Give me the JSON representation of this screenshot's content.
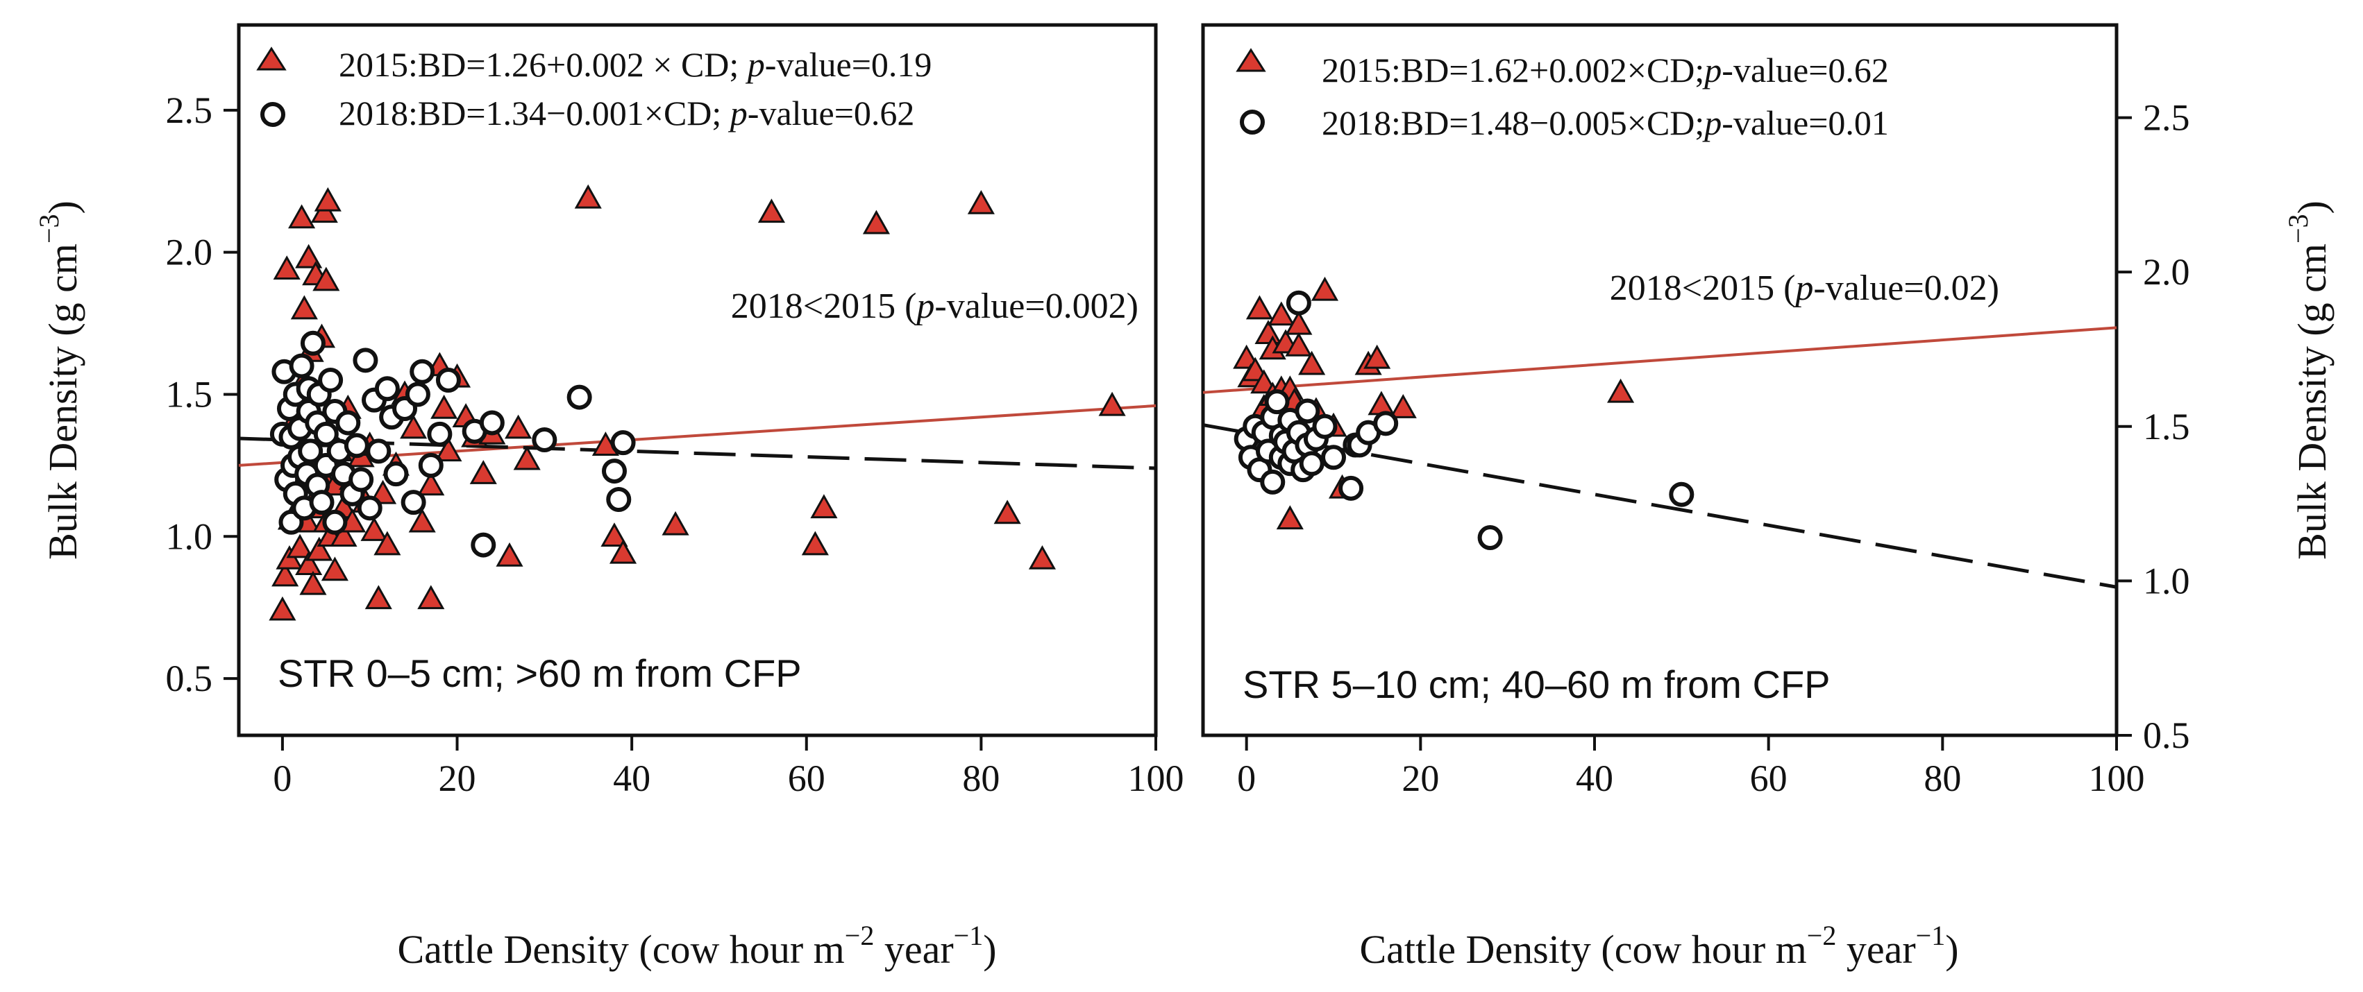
{
  "chart_data": [
    {
      "type": "scatter",
      "panel": "left",
      "title": "STR 0–5 cm; >60 m from CFP",
      "xlabel": "Cattle Density (cow hour m−2 year−1)",
      "ylabel": "Bulk Density (g cm−3)",
      "ylabel_side": "left",
      "xlim": [
        -5,
        100
      ],
      "ylim": [
        0.3,
        2.8
      ],
      "xticks": [
        0,
        20,
        40,
        60,
        80,
        100
      ],
      "yticks": [
        0.5,
        1.0,
        1.5,
        2.0,
        2.5
      ],
      "legend_position": "top-left",
      "annotation": {
        "prefix": "2018<2015 (",
        "italic": "p",
        "suffix": "-value=0.002)"
      },
      "series": [
        {
          "name": "2015",
          "legend": {
            "prefix": "2015:BD=1.26+0.002 × CD; ",
            "italic": "p",
            "suffix": "-value=0.19"
          },
          "marker": "triangle",
          "color": "#d93a30",
          "fit": {
            "intercept": 1.26,
            "slope": 0.002,
            "style": "solid",
            "color": "#c0493b"
          },
          "x": [
            0,
            0.3,
            0.5,
            0.8,
            1,
            1,
            1.2,
            1.5,
            1.8,
            2,
            2,
            2.2,
            2.5,
            2.5,
            2.8,
            3,
            3,
            3,
            3.2,
            3.5,
            3.5,
            3.8,
            4,
            4,
            4.2,
            4.5,
            4.5,
            4.8,
            5,
            5,
            5.2,
            5.5,
            5.5,
            6,
            6,
            6.5,
            7,
            7,
            7.5,
            8,
            8,
            9,
            9.5,
            10,
            10.5,
            11,
            11.5,
            12,
            13,
            14,
            15,
            16,
            17,
            17,
            18,
            18.5,
            19,
            20,
            21,
            22,
            23,
            24,
            26,
            27,
            28,
            35,
            37,
            38,
            39,
            45,
            56,
            61,
            62,
            68,
            80,
            83,
            87,
            95
          ],
          "y": [
            0.74,
            0.86,
            1.94,
            0.92,
            1.06,
            1.25,
            1.4,
            1.2,
            1.1,
            1.3,
            0.96,
            2.12,
            1.8,
            1.55,
            1.05,
            1.98,
            1.28,
            0.9,
            1.65,
            1.1,
            0.83,
            1.92,
            1.4,
            1.15,
            0.95,
            1.22,
            1.7,
            2.14,
            1.05,
            1.9,
            2.18,
            1.35,
            1.0,
            1.18,
            0.88,
            1.3,
            1.1,
            1.0,
            1.45,
            1.2,
            1.05,
            1.28,
            1.12,
            1.32,
            1.02,
            0.78,
            1.15,
            0.97,
            1.25,
            1.5,
            1.38,
            1.05,
            1.18,
            0.78,
            1.6,
            1.45,
            1.3,
            1.56,
            1.42,
            1.35,
            1.22,
            1.36,
            0.93,
            1.38,
            1.27,
            2.19,
            1.32,
            1.0,
            0.94,
            1.04,
            2.14,
            0.97,
            1.1,
            2.1,
            2.17,
            1.08,
            0.92,
            1.46
          ]
        },
        {
          "name": "2018",
          "legend": {
            "prefix": "2018:BD=1.34−0.001×CD; ",
            "italic": "p",
            "suffix": "-value=0.62"
          },
          "marker": "circle",
          "color": "#000000",
          "fit": {
            "intercept": 1.34,
            "slope": -0.001,
            "style": "dashed",
            "color": "#111111"
          },
          "x": [
            0,
            0.2,
            0.5,
            0.8,
            1,
            1,
            1.2,
            1.5,
            1.5,
            2,
            2,
            2.2,
            2.5,
            2.8,
            3,
            3,
            3.2,
            3.5,
            4,
            4,
            4.2,
            4.5,
            5,
            5,
            5.5,
            6,
            6,
            6.5,
            7,
            7.5,
            8,
            8.5,
            9,
            9.5,
            10,
            10.5,
            11,
            12,
            12.5,
            13,
            14,
            15,
            15.5,
            16,
            17,
            18,
            19,
            22,
            23,
            24,
            30,
            34,
            38,
            38.5,
            39
          ],
          "y": [
            1.36,
            1.58,
            1.2,
            1.45,
            1.35,
            1.05,
            1.25,
            1.5,
            1.15,
            1.38,
            1.28,
            1.6,
            1.1,
            1.22,
            1.44,
            1.52,
            1.3,
            1.68,
            1.18,
            1.4,
            1.5,
            1.12,
            1.36,
            1.25,
            1.55,
            1.05,
            1.44,
            1.3,
            1.22,
            1.4,
            1.15,
            1.32,
            1.2,
            1.62,
            1.1,
            1.48,
            1.3,
            1.52,
            1.42,
            1.22,
            1.45,
            1.12,
            1.5,
            1.58,
            1.25,
            1.36,
            1.55,
            1.37,
            0.97,
            1.4,
            1.34,
            1.49,
            1.23,
            1.13,
            1.33
          ]
        }
      ]
    },
    {
      "type": "scatter",
      "panel": "right",
      "title": "STR 5–10 cm; 40–60 m from CFP",
      "xlabel": "Cattle Density (cow hour m−2 year−1)",
      "ylabel": "Bulk Density (g cm−3)",
      "ylabel_side": "right",
      "xlim": [
        -5,
        100
      ],
      "ylim": [
        0.5,
        2.8
      ],
      "xticks": [
        0,
        20,
        40,
        60,
        80,
        100
      ],
      "yticks": [
        0.5,
        1.0,
        1.5,
        2.0,
        2.5
      ],
      "legend_position": "top-left",
      "annotation": {
        "prefix": "2018<2015 (",
        "italic": "p",
        "suffix": "-value=0.02)"
      },
      "series": [
        {
          "name": "2015",
          "legend": {
            "prefix": "2015:BD=1.62+0.002×CD;",
            "italic": "p",
            "suffix": "-value=0.62"
          },
          "marker": "triangle",
          "color": "#d93a30",
          "fit": {
            "intercept": 1.62,
            "slope": 0.002,
            "style": "solid",
            "color": "#c0493b"
          },
          "x": [
            0,
            0.5,
            1,
            1.5,
            2,
            2,
            2.5,
            3,
            3,
            3.5,
            4,
            4,
            4.5,
            5,
            5,
            5.5,
            6,
            6,
            6.5,
            7,
            7.5,
            8,
            9,
            10,
            11,
            14,
            15,
            15.5,
            18,
            43
          ],
          "y": [
            1.72,
            1.66,
            1.68,
            1.88,
            1.56,
            1.64,
            1.8,
            1.6,
            1.75,
            1.45,
            1.62,
            1.86,
            1.77,
            1.62,
            1.2,
            1.58,
            1.83,
            1.76,
            1.38,
            1.42,
            1.7,
            1.55,
            1.94,
            1.5,
            1.3,
            1.7,
            1.72,
            1.57,
            1.56,
            1.61
          ],
          "y_outliers_note": ""
        },
        {
          "name": "2018",
          "legend": {
            "prefix": "2018:BD=1.48−0.005×CD;",
            "italic": "p",
            "suffix": "-value=0.01"
          },
          "marker": "circle",
          "color": "#000000",
          "fit": {
            "intercept": 1.48,
            "slope": -0.005,
            "style": "dashed",
            "color": "#111111"
          },
          "x": [
            0,
            0.5,
            1,
            1.5,
            2,
            2.5,
            3,
            3,
            3.5,
            4,
            4,
            4.5,
            5,
            5,
            5.5,
            6,
            6,
            6.5,
            7,
            7,
            7.5,
            8,
            9,
            10,
            12,
            12.5,
            13,
            14,
            16,
            28,
            50
          ],
          "y": [
            1.46,
            1.4,
            1.5,
            1.36,
            1.48,
            1.42,
            1.32,
            1.53,
            1.58,
            1.4,
            1.47,
            1.45,
            1.38,
            1.52,
            1.42,
            1.48,
            1.9,
            1.36,
            1.55,
            1.44,
            1.38,
            1.46,
            1.5,
            1.4,
            1.3,
            1.44,
            1.44,
            1.48,
            1.51,
            1.14,
            1.28
          ]
        }
      ]
    }
  ],
  "axis_text": {
    "x_main": "Cattle Density (cow hour m",
    "x_sup1": "−2",
    "x_mid": " year",
    "x_sup2": "−1",
    "x_end": ")",
    "y_main": "Bulk Density (g cm",
    "y_sup": "−3",
    "y_end": ")"
  }
}
